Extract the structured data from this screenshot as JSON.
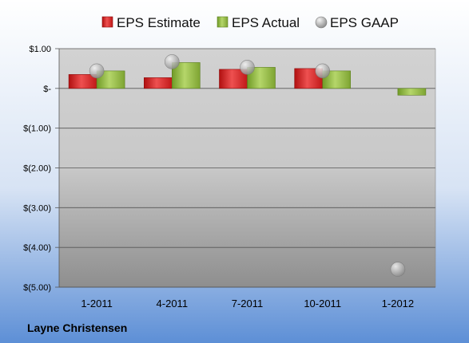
{
  "chart_data": {
    "type": "bar",
    "categories": [
      "1-2011",
      "4-2011",
      "7-2011",
      "10-2011",
      "1-2012"
    ],
    "series": [
      {
        "name": "EPS Estimate",
        "kind": "bar",
        "color": "#cc1f1f",
        "values": [
          0.35,
          0.27,
          0.48,
          0.5,
          null
        ]
      },
      {
        "name": "EPS Actual",
        "kind": "bar",
        "color": "#8db33a",
        "values": [
          0.44,
          0.65,
          0.53,
          0.44,
          -0.17
        ]
      },
      {
        "name": "EPS GAAP",
        "kind": "marker",
        "color": "#b9b9b9",
        "values": [
          0.44,
          0.67,
          0.53,
          0.44,
          -4.55
        ]
      }
    ],
    "ylim": [
      -5,
      1
    ],
    "yticks": [
      1,
      0,
      -1,
      -2,
      -3,
      -4,
      -5
    ],
    "ytick_labels": [
      "$1.00",
      "$-",
      "$(1.00)",
      "$(2.00)",
      "$(3.00)",
      "$(4.00)",
      "$(5.00)"
    ],
    "grid": true,
    "legend_position": "top",
    "footer": "Layne Christensen"
  }
}
